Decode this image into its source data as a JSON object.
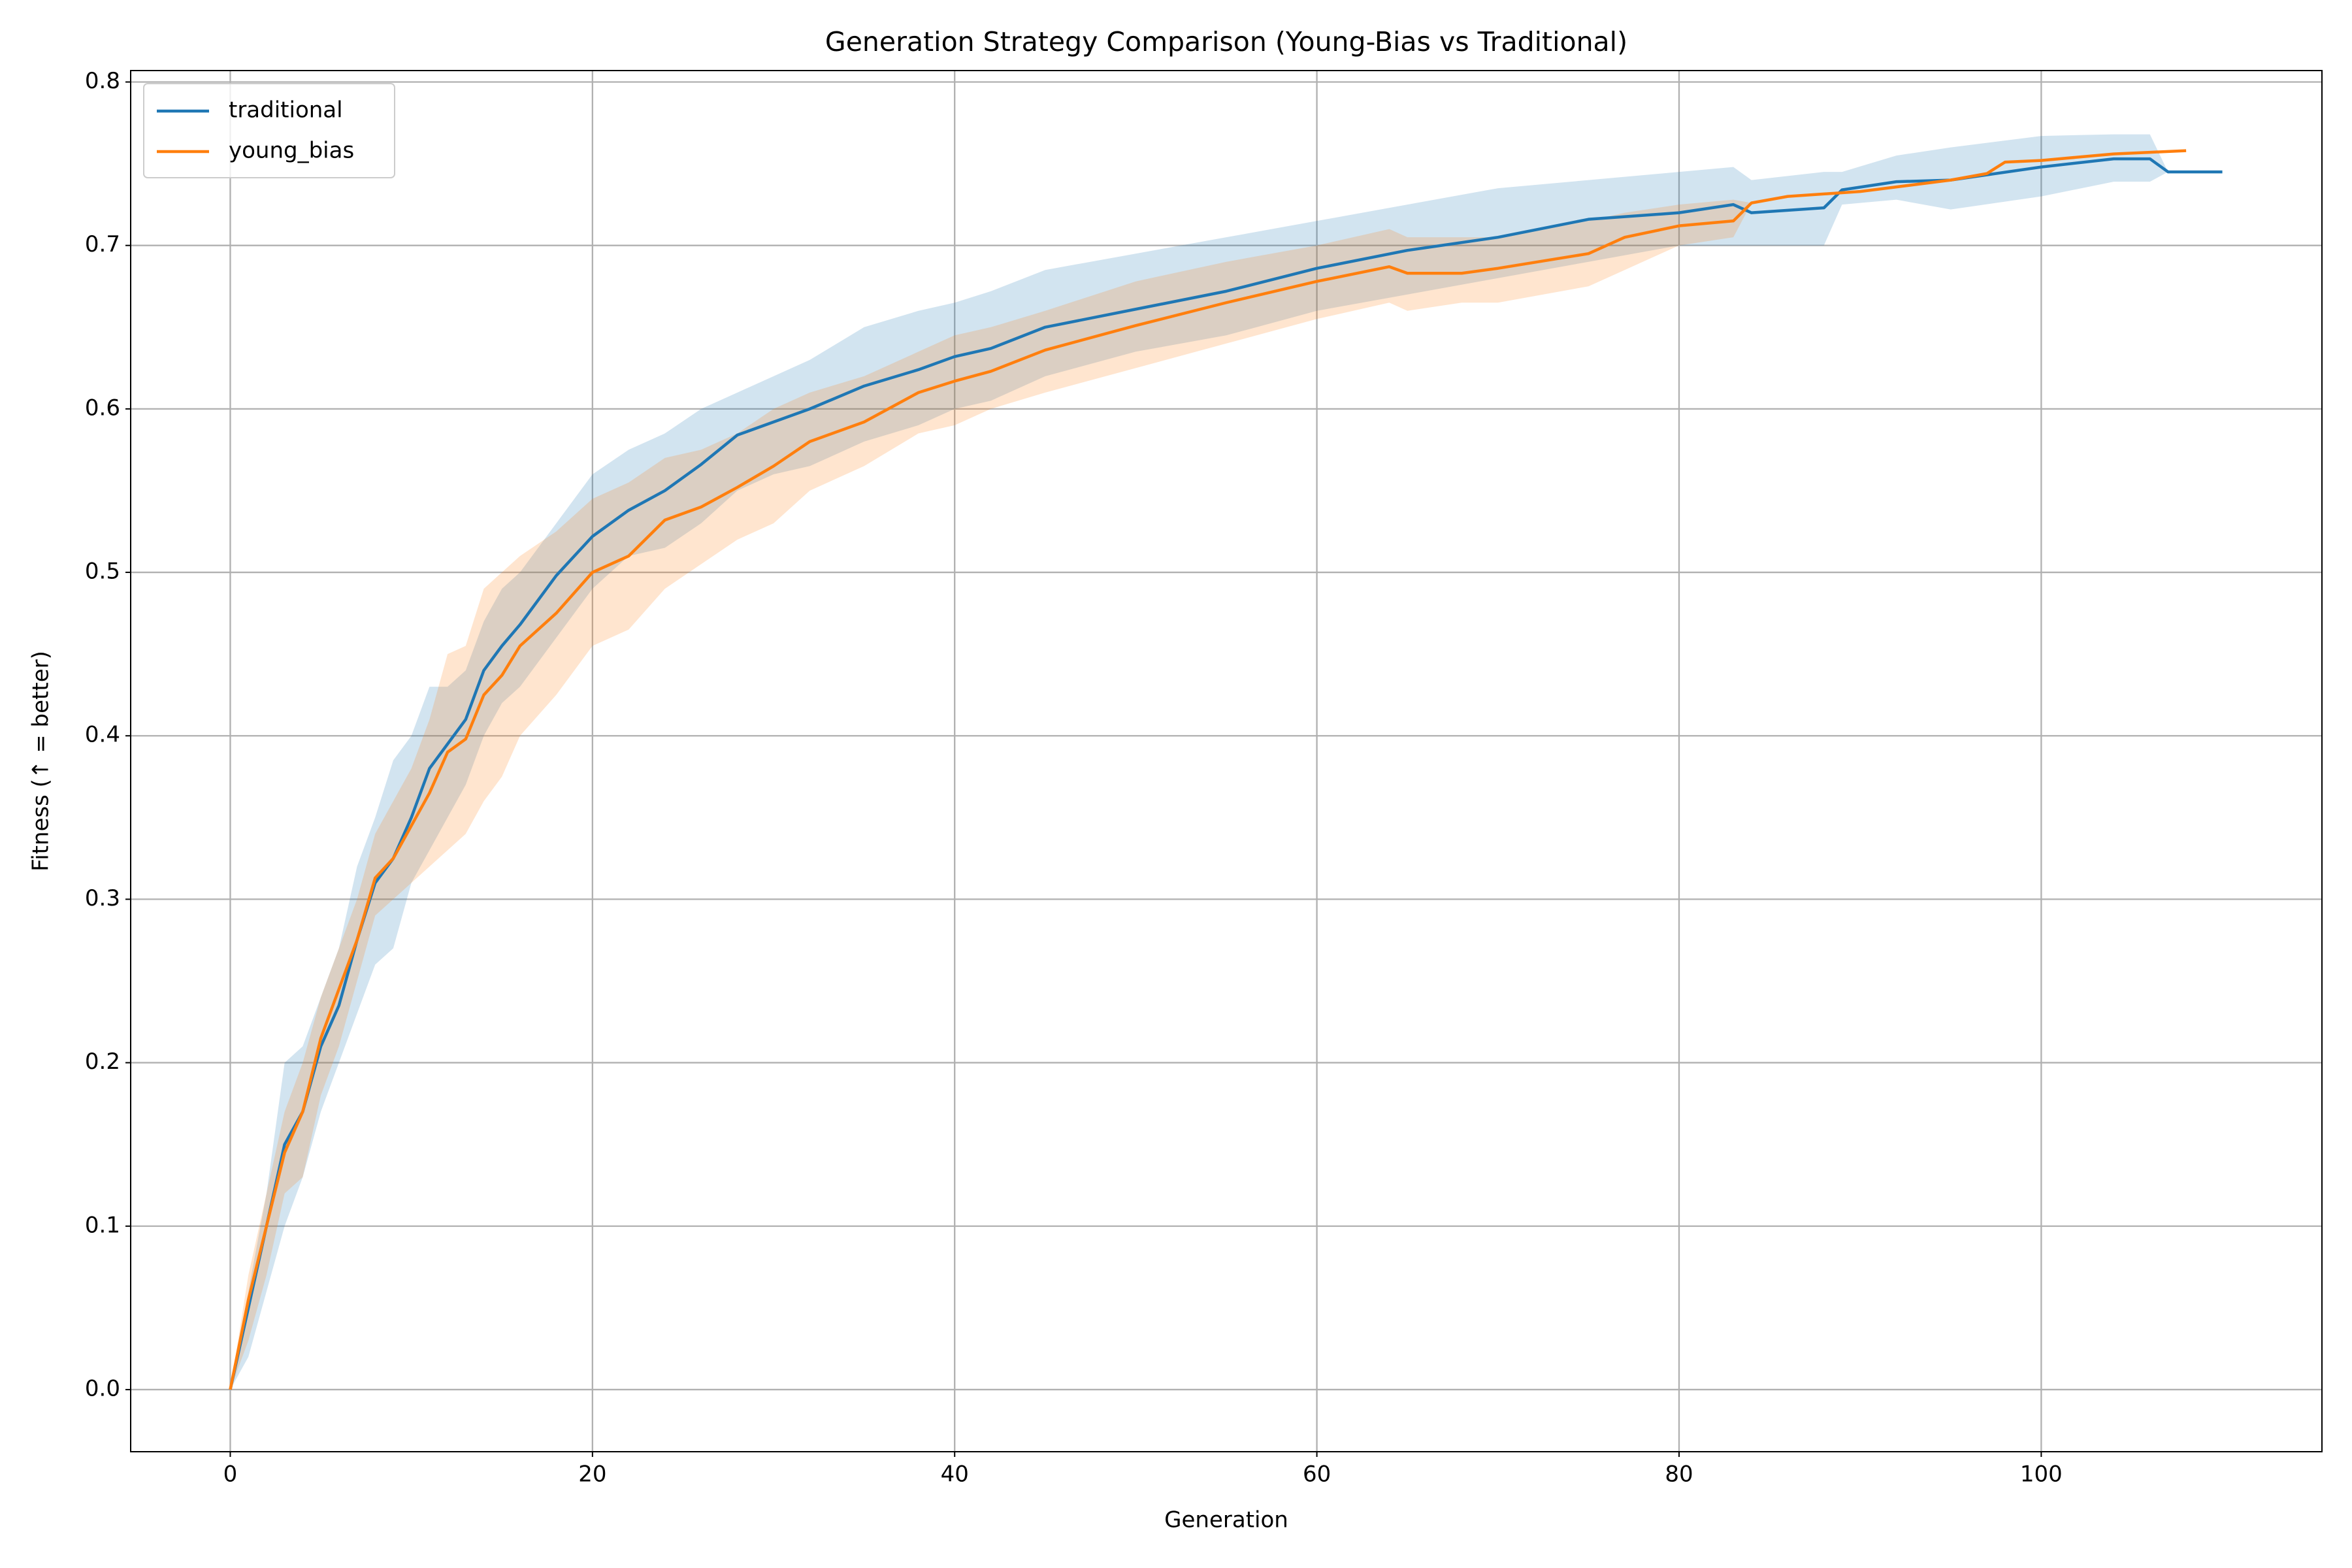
{
  "chart_data": {
    "type": "line_band",
    "title": "Generation Strategy Comparison (Young-Bias vs Traditional)",
    "x_label": "Generation",
    "y_label": "Fitness (↑ = better)",
    "xlim": [
      -5.5,
      115.5
    ],
    "ylim": [
      -0.038,
      0.807
    ],
    "xticks": [
      0,
      20,
      40,
      60,
      80,
      100
    ],
    "yticks": [
      {
        "value": 0,
        "label": "0.0"
      },
      0.1,
      0.2,
      0.3,
      0.4,
      0.5,
      0.6,
      0.7,
      0.8
    ],
    "grid": true,
    "legend": "upper left",
    "series": [
      {
        "name": "traditional",
        "color": "#1f77b4",
        "x": [
          0,
          1,
          2,
          3,
          4,
          5,
          6,
          7,
          8,
          9,
          10,
          11,
          12,
          13,
          14,
          15,
          16,
          18,
          20,
          22,
          24,
          26,
          28,
          30,
          32,
          35,
          38,
          40,
          42,
          45,
          50,
          55,
          60,
          65,
          70,
          75,
          80,
          83,
          84,
          88,
          89,
          92,
          95,
          100,
          104,
          106,
          107,
          110
        ],
        "values": [
          0,
          0.05,
          0.1,
          0.15,
          0.17,
          0.21,
          0.235,
          0.275,
          0.31,
          0.325,
          0.35,
          0.38,
          0.395,
          0.41,
          0.44,
          0.455,
          0.468,
          0.498,
          0.522,
          0.538,
          0.55,
          0.566,
          0.584,
          0.592,
          0.6,
          0.614,
          0.624,
          0.632,
          0.637,
          0.65,
          0.661,
          0.672,
          0.686,
          0.697,
          0.705,
          0.716,
          0.72,
          0.725,
          0.72,
          0.723,
          0.734,
          0.739,
          0.74,
          0.748,
          0.753,
          0.753,
          0.745,
          0.745
        ],
        "lower": [
          0,
          0.02,
          0.06,
          0.1,
          0.13,
          0.17,
          0.2,
          0.23,
          0.26,
          0.27,
          0.31,
          0.33,
          0.35,
          0.37,
          0.4,
          0.42,
          0.43,
          0.46,
          0.49,
          0.51,
          0.515,
          0.53,
          0.55,
          0.56,
          0.565,
          0.58,
          0.59,
          0.6,
          0.605,
          0.62,
          0.635,
          0.645,
          0.66,
          0.67,
          0.68,
          0.69,
          0.7,
          0.7,
          0.7,
          0.7,
          0.725,
          0.728,
          0.722,
          0.73,
          0.739,
          0.739,
          0.745,
          0.745
        ],
        "upper": [
          0,
          0.06,
          0.12,
          0.2,
          0.21,
          0.24,
          0.27,
          0.32,
          0.35,
          0.385,
          0.4,
          0.43,
          0.43,
          0.44,
          0.47,
          0.49,
          0.5,
          0.53,
          0.56,
          0.575,
          0.585,
          0.6,
          0.61,
          0.62,
          0.63,
          0.65,
          0.66,
          0.665,
          0.672,
          0.685,
          0.695,
          0.705,
          0.715,
          0.725,
          0.735,
          0.74,
          0.745,
          0.748,
          0.74,
          0.745,
          0.745,
          0.755,
          0.76,
          0.767,
          0.768,
          0.768,
          0.745,
          0.745
        ]
      },
      {
        "name": "young_bias",
        "color": "#ff7f0e",
        "x": [
          0,
          1,
          2,
          3,
          4,
          5,
          6,
          7,
          8,
          9,
          10,
          11,
          12,
          13,
          14,
          15,
          16,
          18,
          20,
          22,
          24,
          26,
          28,
          30,
          32,
          35,
          38,
          40,
          42,
          45,
          50,
          55,
          60,
          64,
          65,
          68,
          70,
          75,
          77,
          80,
          83,
          84,
          86,
          90,
          95,
          97,
          98,
          100,
          104,
          106,
          108
        ],
        "values": [
          0,
          0.055,
          0.1,
          0.145,
          0.17,
          0.215,
          0.245,
          0.275,
          0.313,
          0.325,
          0.345,
          0.365,
          0.39,
          0.398,
          0.425,
          0.437,
          0.455,
          0.475,
          0.5,
          0.51,
          0.532,
          0.54,
          0.552,
          0.565,
          0.58,
          0.592,
          0.61,
          0.617,
          0.623,
          0.636,
          0.651,
          0.665,
          0.678,
          0.687,
          0.683,
          0.683,
          0.686,
          0.695,
          0.705,
          0.712,
          0.715,
          0.726,
          0.73,
          0.733,
          0.74,
          0.744,
          0.751,
          0.752,
          0.756,
          0.757,
          0.758
        ],
        "lower": [
          0,
          0.03,
          0.07,
          0.12,
          0.13,
          0.18,
          0.21,
          0.25,
          0.29,
          0.3,
          0.31,
          0.32,
          0.33,
          0.34,
          0.36,
          0.375,
          0.4,
          0.425,
          0.455,
          0.465,
          0.49,
          0.505,
          0.52,
          0.53,
          0.55,
          0.565,
          0.585,
          0.59,
          0.6,
          0.61,
          0.625,
          0.64,
          0.655,
          0.665,
          0.66,
          0.665,
          0.665,
          0.675,
          0.685,
          0.7,
          0.705,
          0.726,
          0.73,
          0.733,
          0.74,
          0.744,
          0.751,
          0.752,
          0.756,
          0.757,
          0.758
        ],
        "upper": [
          0,
          0.07,
          0.12,
          0.17,
          0.2,
          0.24,
          0.27,
          0.3,
          0.34,
          0.36,
          0.38,
          0.41,
          0.45,
          0.455,
          0.49,
          0.5,
          0.51,
          0.525,
          0.545,
          0.555,
          0.57,
          0.575,
          0.585,
          0.6,
          0.61,
          0.62,
          0.635,
          0.645,
          0.65,
          0.66,
          0.678,
          0.69,
          0.7,
          0.71,
          0.705,
          0.705,
          0.705,
          0.715,
          0.72,
          0.725,
          0.728,
          0.726,
          0.73,
          0.733,
          0.74,
          0.744,
          0.751,
          0.752,
          0.756,
          0.757,
          0.758
        ]
      }
    ]
  }
}
